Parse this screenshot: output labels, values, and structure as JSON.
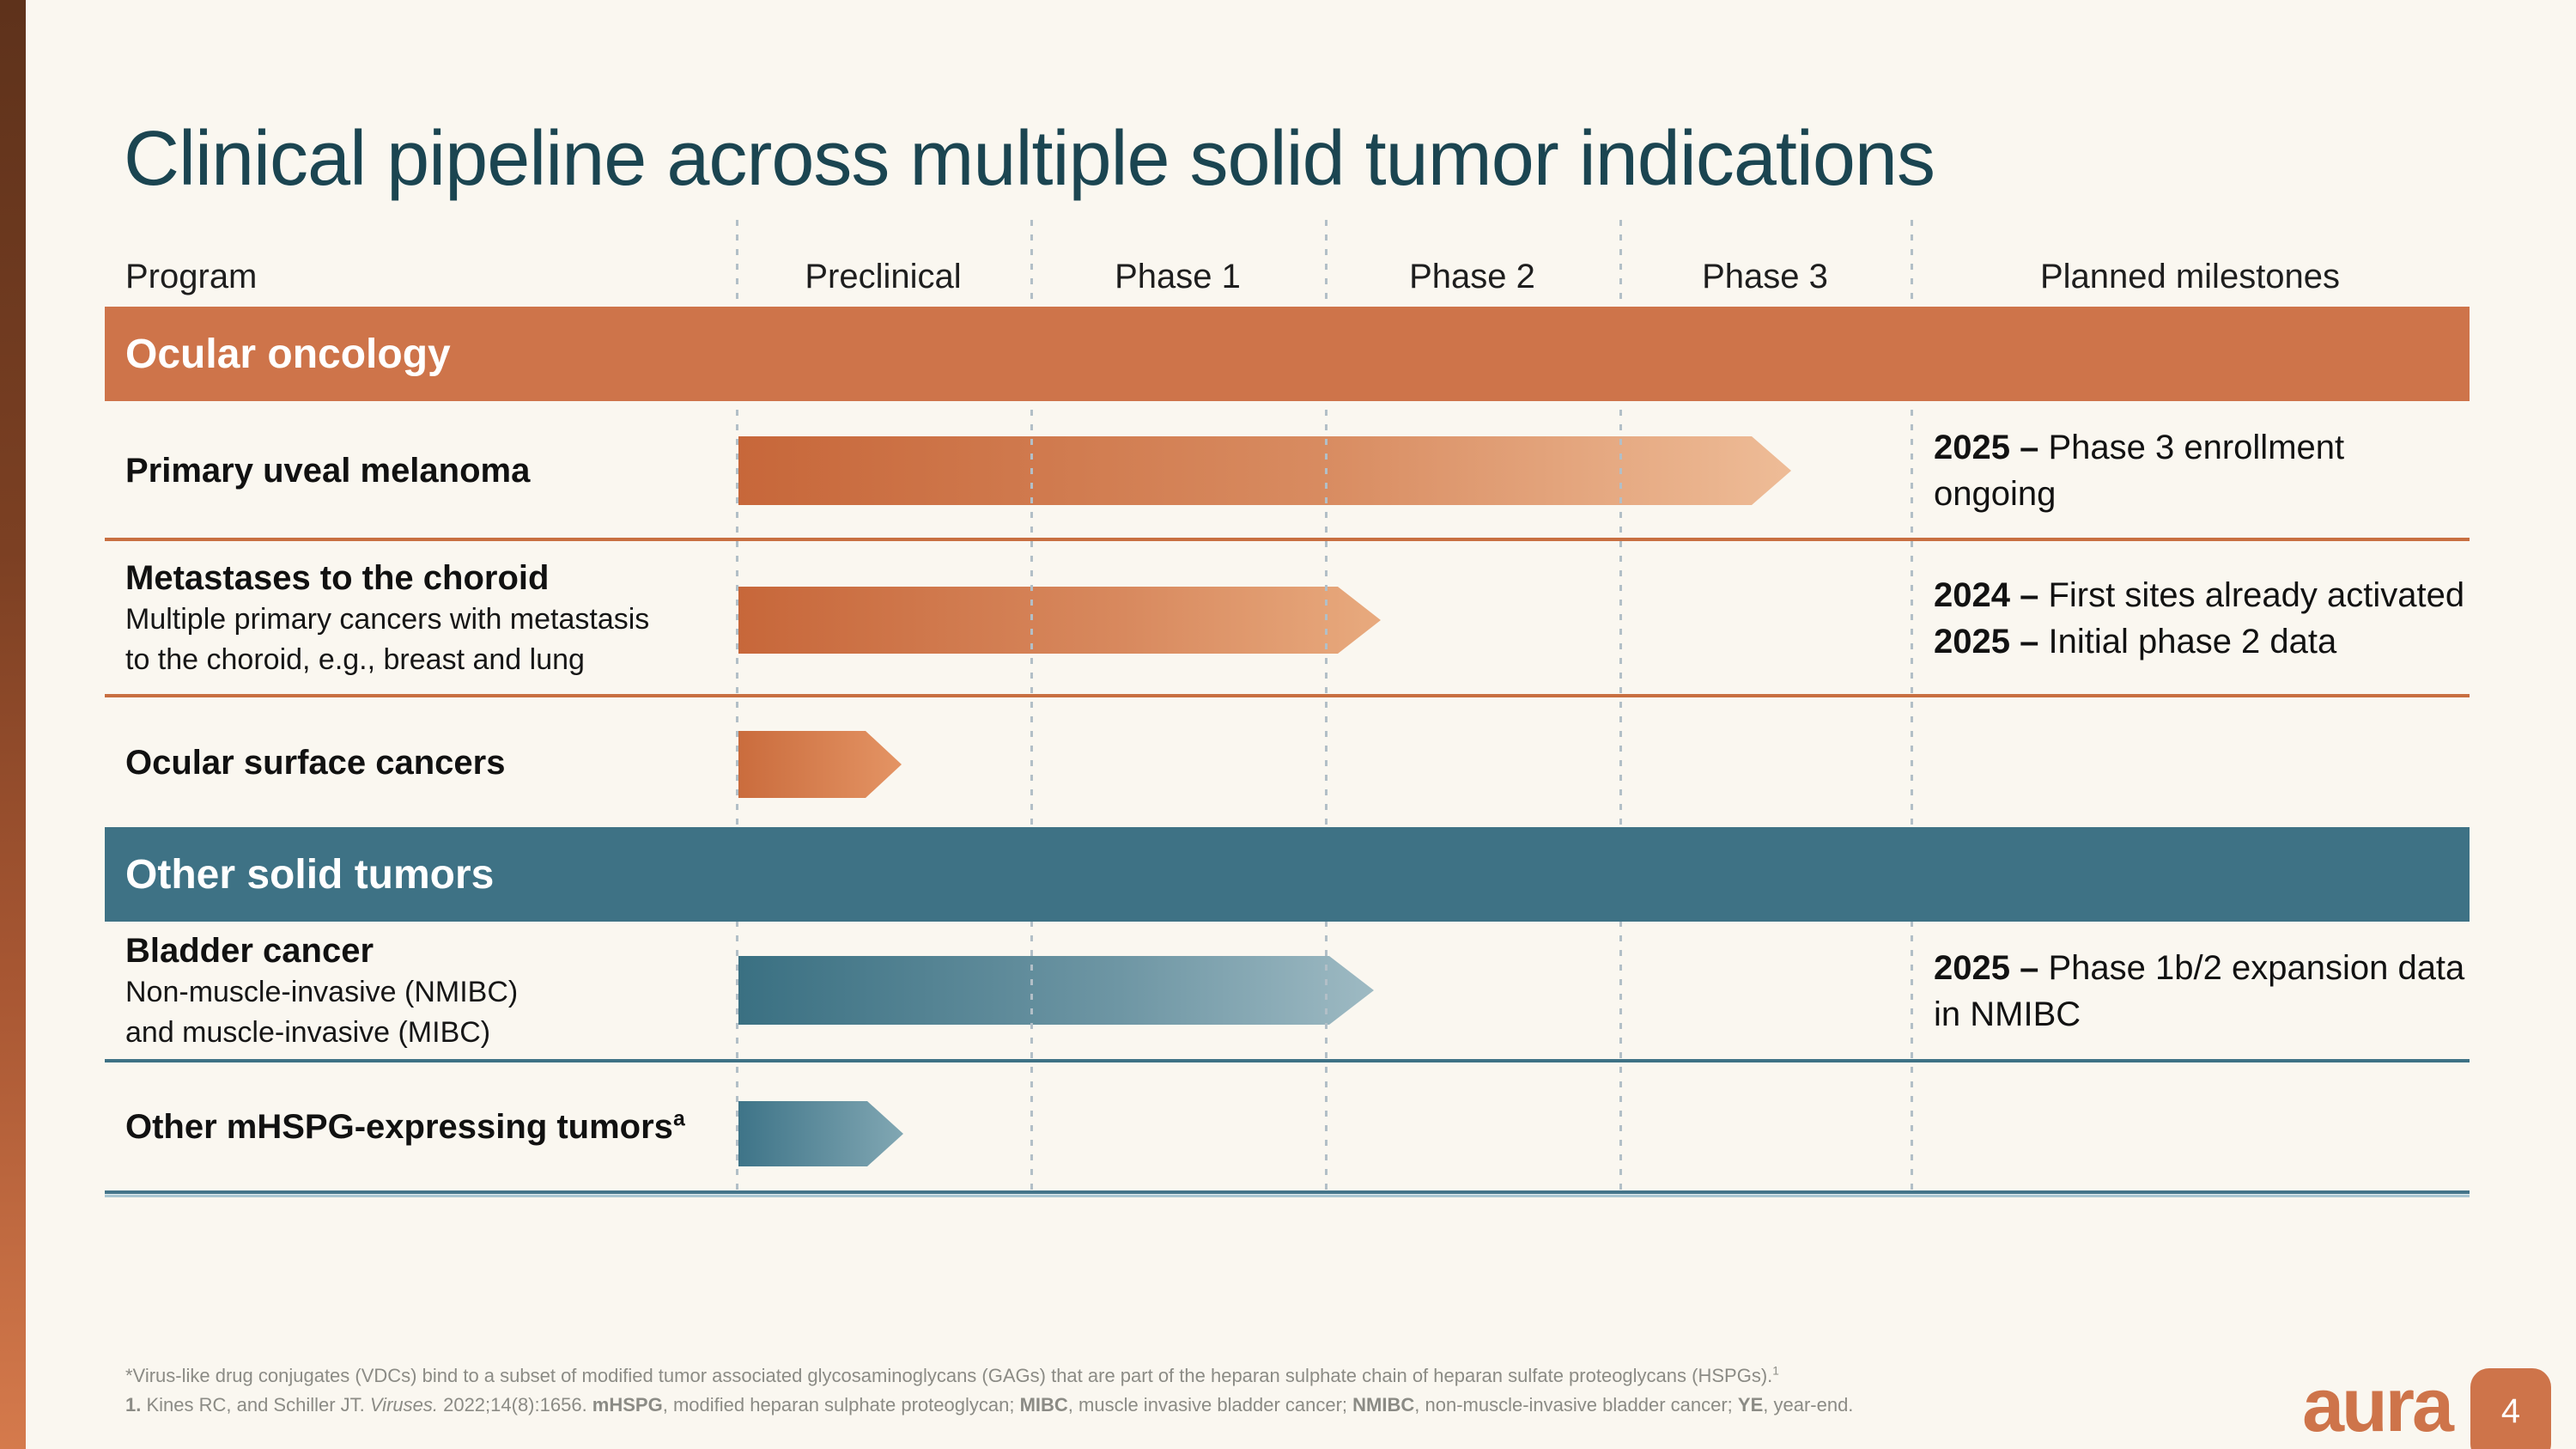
{
  "slide": {
    "title": "Clinical pipeline across multiple solid tumor indications",
    "logo_text": "aura",
    "page_number": "4"
  },
  "colors": {
    "background": "#FAF7F0",
    "accent_orange": "#CE744A",
    "accent_teal": "#3E7285",
    "title_text": "#1B4551"
  },
  "table": {
    "columns": [
      "Program",
      "Preclinical",
      "Phase 1",
      "Phase 2",
      "Phase 3",
      "Planned milestones"
    ],
    "sections": [
      {
        "label": "Ocular oncology"
      },
      {
        "label": "Other solid tumors"
      }
    ],
    "rows": [
      {
        "section": "Ocular oncology",
        "title": "Primary uveal melanoma",
        "bar": {
          "start": "Preclinical",
          "end": "Phase 3"
        },
        "milestones": [
          {
            "year": "2025 –",
            "text": "Phase 3 enrollment ongoing"
          }
        ]
      },
      {
        "section": "Ocular oncology",
        "title": "Metastases to the choroid",
        "subtitle_lines": [
          "Multiple primary cancers with metastasis",
          "to the choroid, e.g., breast and lung"
        ],
        "bar": {
          "start": "Preclinical",
          "end": "Phase 2"
        },
        "milestones": [
          {
            "year": "2024 –",
            "text": "First sites already activated"
          },
          {
            "year": "2025 –",
            "text": "Initial phase 2 data"
          }
        ]
      },
      {
        "section": "Ocular oncology",
        "title": "Ocular surface cancers",
        "bar": {
          "start": "Preclinical",
          "end": "Preclinical"
        },
        "milestones": []
      },
      {
        "section": "Other solid tumors",
        "title": "Bladder cancer",
        "subtitle_lines": [
          "Non-muscle-invasive (NMIBC)",
          "and muscle-invasive (MIBC)"
        ],
        "bar": {
          "start": "Preclinical",
          "end": "Phase 2"
        },
        "milestones": [
          {
            "year": "2025 –",
            "text": "Phase 1b/2 expansion data in NMIBC"
          }
        ]
      },
      {
        "section": "Other solid tumors",
        "title": "Other mHSPG-expressing tumors",
        "title_superscript": "a",
        "bar": {
          "start": "Preclinical",
          "end": "Preclinical"
        },
        "milestones": []
      }
    ]
  },
  "footnotes": {
    "line1_text": "*Virus-like drug conjugates (VDCs) bind to a subset of modified tumor associated glycosaminoglycans (GAGs) that are part of the heparan sulphate chain of heparan sulfate proteoglycans (HSPGs).",
    "line1_superscript": "1",
    "line2": {
      "ref_num": "1.",
      "ref_authors": " Kines RC, and Schiller JT. ",
      "journal": "Viruses.",
      "ref_tail": " 2022;14(8):1656. ",
      "abbr1": "mHSPG",
      "abbr1_def": ", modified heparan sulphate proteoglycan; ",
      "abbr2": "MIBC",
      "abbr2_def": ", muscle invasive bladder cancer; ",
      "abbr3": "NMIBC",
      "abbr3_def": ", non-muscle-invasive bladder cancer; ",
      "abbr4": "YE",
      "abbr4_def": ", year-end."
    }
  }
}
